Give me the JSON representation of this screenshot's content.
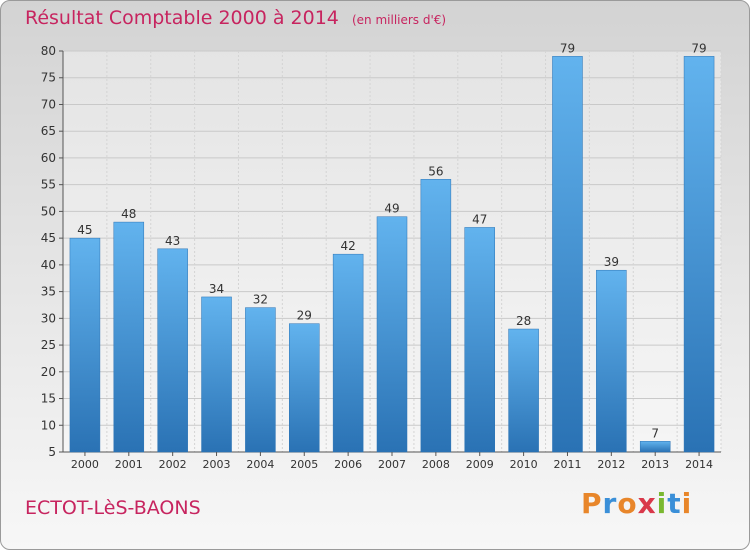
{
  "chart_data": {
    "type": "bar",
    "title": "Résultat Comptable 2000 à 2014",
    "subtitle": "(en milliers d'€)",
    "categories": [
      "2000",
      "2001",
      "2002",
      "2003",
      "2004",
      "2005",
      "2006",
      "2007",
      "2008",
      "2009",
      "2010",
      "2011",
      "2012",
      "2013",
      "2014"
    ],
    "values": [
      45,
      48,
      43,
      34,
      32,
      29,
      42,
      49,
      56,
      47,
      28,
      79,
      39,
      7,
      79
    ],
    "ylim": [
      5,
      80
    ],
    "yticks": [
      5,
      10,
      15,
      20,
      25,
      30,
      35,
      40,
      45,
      50,
      55,
      60,
      65,
      70,
      75,
      80
    ],
    "xlabel": "",
    "ylabel": "",
    "grid": true
  },
  "footer": {
    "commune": "ECTOT-LèS-BAONS",
    "logo_text": "Proxiti"
  },
  "colors": {
    "title": "#c7245f",
    "bar_light": "#62b3ee",
    "bar_dark": "#2a72b4"
  }
}
